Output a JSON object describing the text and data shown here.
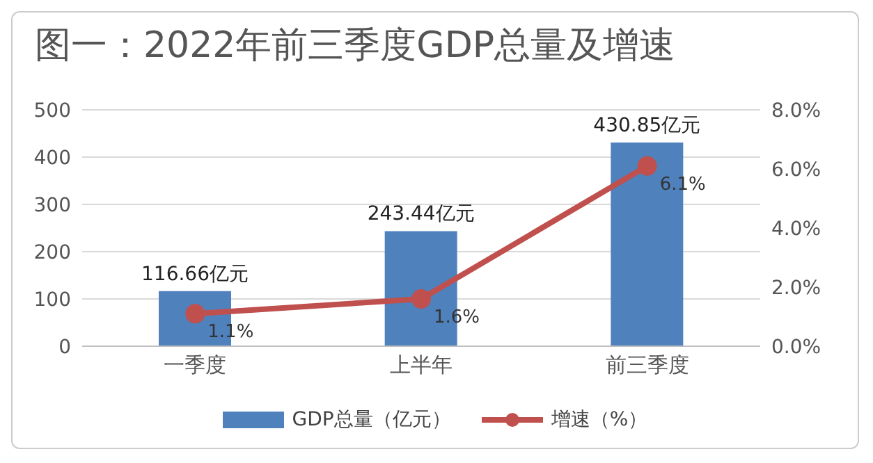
{
  "chart_data": {
    "type": "bar",
    "title": "图一：2022年前三季度GDP总量及增速",
    "categories": [
      "一季度",
      "上半年",
      "前三季度"
    ],
    "series": [
      {
        "name": "GDP总量（亿元）",
        "color": "#4f81bd",
        "values": [
          116.66,
          243.44,
          430.85
        ],
        "value_labels": [
          "116.66亿元",
          "243.44亿元",
          "430.85亿元"
        ]
      },
      {
        "name": "增速（%）",
        "type": "line",
        "axis": "y2",
        "color": "#c0504d",
        "values": [
          1.1,
          1.6,
          6.1
        ],
        "value_labels": [
          "1.1%",
          "1.6%",
          "6.1%"
        ]
      }
    ],
    "ylim": [
      0,
      500
    ],
    "yticks": [
      0,
      100,
      200,
      300,
      400,
      500
    ],
    "y2lim": [
      0,
      8
    ],
    "y2ticks": [
      {
        "value": 0,
        "label": "0.0%"
      },
      {
        "value": 2,
        "label": "2.0%"
      },
      {
        "value": 4,
        "label": "4.0%"
      },
      {
        "value": 6,
        "label": "6.0%"
      },
      {
        "value": 8,
        "label": "8.0%"
      }
    ],
    "grid": "y",
    "legend": "bottom",
    "marker": "circle",
    "line_style": "solid"
  }
}
